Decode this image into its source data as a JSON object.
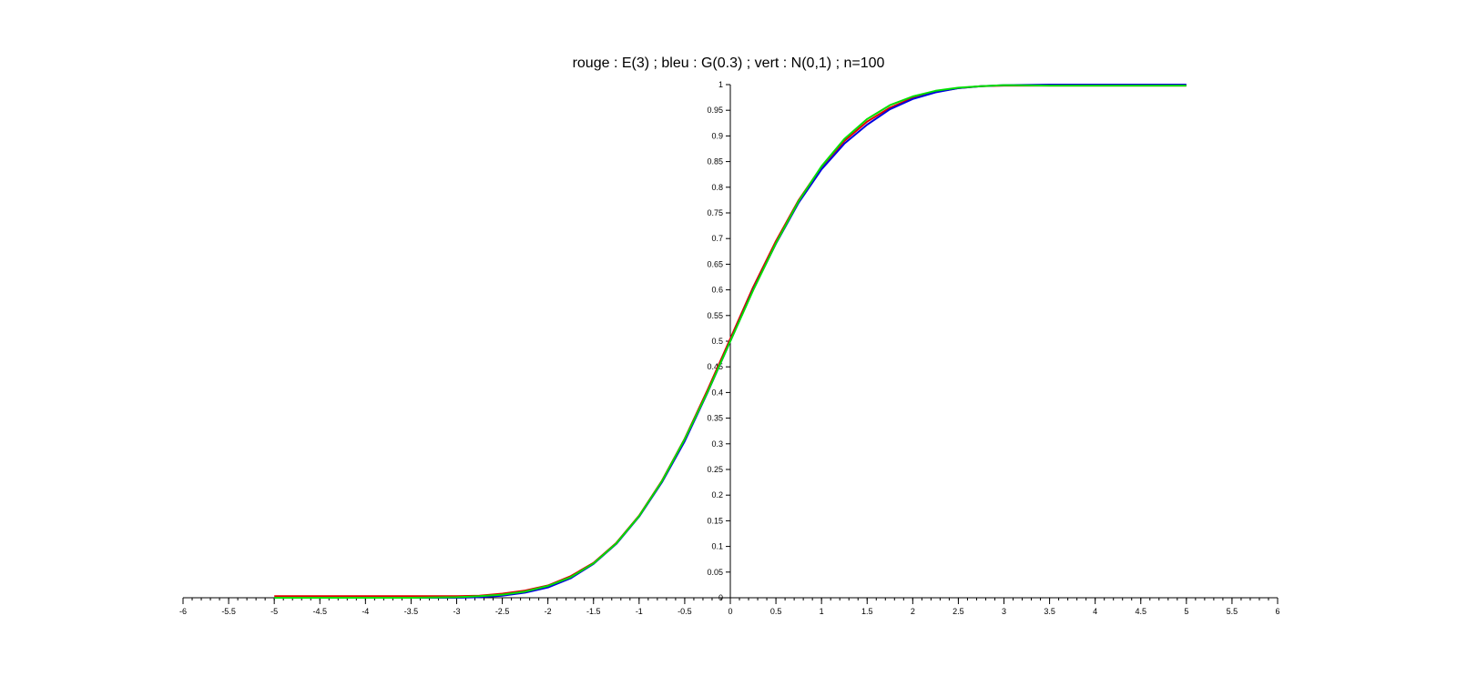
{
  "chart_data": {
    "type": "line",
    "title": "rouge : E(3) ; bleu : G(0.3) ; vert : N(0,1) ; n=100",
    "xlabel": "",
    "ylabel": "",
    "xlim": [
      -6,
      6
    ],
    "ylim": [
      0,
      1
    ],
    "grid": false,
    "x_ticks": [
      "-6",
      "-5.5",
      "-5",
      "-4.5",
      "-4",
      "-3.5",
      "-3",
      "-2.5",
      "-2",
      "-1.5",
      "-1",
      "-0.5",
      "0",
      "0.5",
      "1",
      "1.5",
      "2",
      "2.5",
      "3",
      "3.5",
      "4",
      "4.5",
      "5",
      "5.5",
      "6"
    ],
    "y_ticks": [
      "0",
      "0.05",
      "0.1",
      "0.15",
      "0.2",
      "0.25",
      "0.3",
      "0.35",
      "0.4",
      "0.45",
      "0.5",
      "0.55",
      "0.6",
      "0.65",
      "0.7",
      "0.75",
      "0.8",
      "0.85",
      "0.9",
      "0.95",
      "1"
    ],
    "x": [
      -5,
      -4.5,
      -4,
      -3.5,
      -3,
      -2.75,
      -2.5,
      -2.25,
      -2,
      -1.75,
      -1.5,
      -1.25,
      -1,
      -0.75,
      -0.5,
      -0.25,
      0,
      0.25,
      0.5,
      0.75,
      1,
      1.25,
      1.5,
      1.75,
      2,
      2.25,
      2.5,
      2.75,
      3,
      3.5,
      4,
      4.5,
      5
    ],
    "series": [
      {
        "color": "#e00000",
        "values": [
          0.003,
          0.003,
          0.003,
          0.003,
          0.003,
          0.004,
          0.008,
          0.014,
          0.024,
          0.042,
          0.068,
          0.107,
          0.16,
          0.228,
          0.31,
          0.405,
          0.505,
          0.605,
          0.695,
          0.775,
          0.84,
          0.89,
          0.928,
          0.955,
          0.974,
          0.986,
          0.993,
          0.997,
          0.998,
          0.998,
          0.998,
          0.998,
          0.998
        ]
      },
      {
        "color": "#0000e0",
        "values": [
          0.0,
          0.0,
          0.0,
          0.0,
          0.0,
          0.001,
          0.004,
          0.01,
          0.02,
          0.038,
          0.066,
          0.105,
          0.158,
          0.225,
          0.305,
          0.4,
          0.5,
          0.6,
          0.69,
          0.77,
          0.835,
          0.885,
          0.922,
          0.952,
          0.972,
          0.985,
          0.993,
          0.997,
          0.999,
          1.0,
          1.0,
          1.0,
          1.0
        ]
      },
      {
        "color": "#00e000",
        "values": [
          0.0,
          0.0,
          0.0,
          0.0,
          0.001,
          0.003,
          0.006,
          0.012,
          0.023,
          0.04,
          0.067,
          0.106,
          0.159,
          0.227,
          0.309,
          0.401,
          0.5,
          0.599,
          0.691,
          0.773,
          0.841,
          0.894,
          0.933,
          0.96,
          0.977,
          0.988,
          0.994,
          0.997,
          0.999,
          0.998,
          0.998,
          0.998,
          0.998
        ]
      }
    ]
  }
}
